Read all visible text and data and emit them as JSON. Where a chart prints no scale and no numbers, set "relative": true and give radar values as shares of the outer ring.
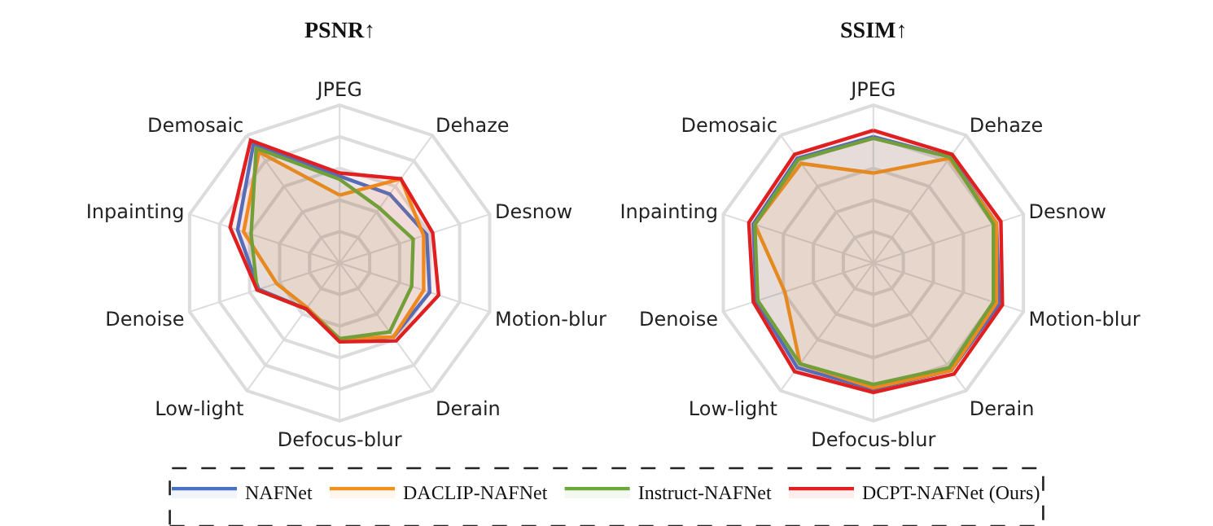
{
  "chart_data": [
    {
      "type": "radar",
      "title": "PSNR↑",
      "relative": true,
      "legend": "bottom",
      "categories": [
        "JPEG",
        "Dehaze",
        "Desnow",
        "Motion-blur",
        "Derain",
        "Defocus-blur",
        "Low-light",
        "Denoise",
        "Inpainting",
        "Demosaic"
      ],
      "series": [
        {
          "name": "NAFNet",
          "color": "#4a72c4",
          "values": [
            0.55,
            0.54,
            0.58,
            0.6,
            0.58,
            0.49,
            0.36,
            0.54,
            0.68,
            0.93
          ]
        },
        {
          "name": "DACLIP-NAFNet",
          "color": "#f0921e",
          "values": [
            0.43,
            0.66,
            0.56,
            0.56,
            0.58,
            0.48,
            0.35,
            0.42,
            0.64,
            0.87
          ]
        },
        {
          "name": "Instruct-NAFNet",
          "color": "#6aaa3c",
          "values": [
            0.53,
            0.43,
            0.49,
            0.48,
            0.54,
            0.48,
            0.36,
            0.55,
            0.59,
            0.9
          ]
        },
        {
          "name": "DCPT-NAFNet (Ours)",
          "color": "#e02020",
          "values": [
            0.57,
            0.66,
            0.62,
            0.66,
            0.61,
            0.5,
            0.36,
            0.55,
            0.73,
            0.96
          ]
        }
      ]
    },
    {
      "type": "radar",
      "title": "SSIM↑",
      "relative": true,
      "categories": [
        "JPEG",
        "Dehaze",
        "Desnow",
        "Motion-blur",
        "Derain",
        "Defocus-blur",
        "Low-light",
        "Denoise",
        "Inpainting",
        "Demosaic"
      ],
      "series": [
        {
          "name": "NAFNet",
          "color": "#4a72c4",
          "values": [
            0.8,
            0.83,
            0.82,
            0.84,
            0.84,
            0.8,
            0.82,
            0.78,
            0.8,
            0.82
          ]
        },
        {
          "name": "DACLIP-NAFNet",
          "color": "#f0921e",
          "values": [
            0.57,
            0.82,
            0.82,
            0.82,
            0.84,
            0.79,
            0.79,
            0.59,
            0.79,
            0.78
          ]
        },
        {
          "name": "Instruct-NAFNet",
          "color": "#6aaa3c",
          "values": [
            0.79,
            0.83,
            0.8,
            0.8,
            0.82,
            0.77,
            0.79,
            0.77,
            0.79,
            0.81
          ]
        },
        {
          "name": "DCPT-NAFNet (Ours)",
          "color": "#e02020",
          "values": [
            0.84,
            0.85,
            0.85,
            0.86,
            0.87,
            0.82,
            0.85,
            0.8,
            0.83,
            0.85
          ]
        }
      ]
    }
  ]
}
